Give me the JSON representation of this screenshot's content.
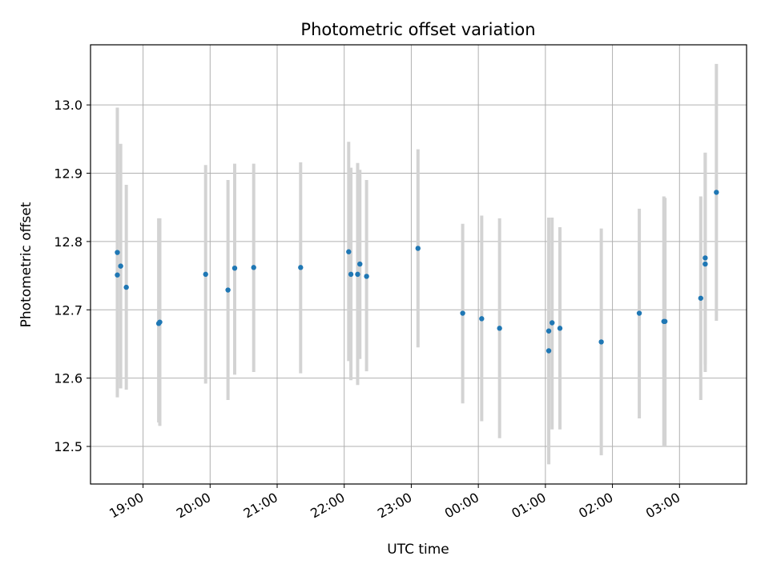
{
  "chart_data": {
    "type": "scatter",
    "title": "Photometric offset variation",
    "xlabel": "UTC time",
    "ylabel": "Photometric offset",
    "x_ticks": [
      "19:00",
      "20:00",
      "21:00",
      "22:00",
      "23:00",
      "00:00",
      "01:00",
      "02:00",
      "03:00"
    ],
    "y_ticks": [
      "12.5",
      "12.6",
      "12.7",
      "12.8",
      "12.9",
      "13.0"
    ],
    "xlim": [
      "18:13",
      "04:00"
    ],
    "ylim": [
      12.445,
      13.088
    ],
    "grid": true,
    "point_color": "#1f77b4",
    "errorbar_color": "#d3d3d3",
    "series": [
      {
        "points": [
          {
            "t": "18:37",
            "y": 12.784,
            "lo": 12.572,
            "hi": 12.996
          },
          {
            "t": "18:37",
            "y": 12.751,
            "lo": 12.572,
            "hi": 12.996
          },
          {
            "t": "18:40",
            "y": 12.764,
            "lo": 12.585,
            "hi": 12.943
          },
          {
            "t": "18:45",
            "y": 12.733,
            "lo": 12.583,
            "hi": 12.883
          },
          {
            "t": "19:14",
            "y": 12.68,
            "lo": 12.535,
            "hi": 12.834
          },
          {
            "t": "19:15",
            "y": 12.682,
            "lo": 12.53,
            "hi": 12.834
          },
          {
            "t": "19:56",
            "y": 12.752,
            "lo": 12.592,
            "hi": 12.912
          },
          {
            "t": "20:16",
            "y": 12.729,
            "lo": 12.568,
            "hi": 12.89
          },
          {
            "t": "20:22",
            "y": 12.761,
            "lo": 12.605,
            "hi": 12.914
          },
          {
            "t": "20:39",
            "y": 12.762,
            "lo": 12.609,
            "hi": 12.914
          },
          {
            "t": "21:21",
            "y": 12.762,
            "lo": 12.607,
            "hi": 12.916
          },
          {
            "t": "22:04",
            "y": 12.785,
            "lo": 12.625,
            "hi": 12.946
          },
          {
            "t": "22:06",
            "y": 12.752,
            "lo": 12.597,
            "hi": 12.908
          },
          {
            "t": "22:12",
            "y": 12.752,
            "lo": 12.59,
            "hi": 12.915
          },
          {
            "t": "22:14",
            "y": 12.767,
            "lo": 12.628,
            "hi": 12.905
          },
          {
            "t": "22:20",
            "y": 12.749,
            "lo": 12.61,
            "hi": 12.89
          },
          {
            "t": "23:06",
            "y": 12.79,
            "lo": 12.645,
            "hi": 12.935
          },
          {
            "t": "23:46",
            "y": 12.695,
            "lo": 12.563,
            "hi": 12.826
          },
          {
            "t": "00:03",
            "y": 12.687,
            "lo": 12.537,
            "hi": 12.838
          },
          {
            "t": "00:19",
            "y": 12.673,
            "lo": 12.512,
            "hi": 12.834
          },
          {
            "t": "01:03",
            "y": 12.64,
            "lo": 12.474,
            "hi": 12.835
          },
          {
            "t": "01:03",
            "y": 12.669,
            "lo": 12.474,
            "hi": 12.835
          },
          {
            "t": "01:06",
            "y": 12.681,
            "lo": 12.525,
            "hi": 12.835
          },
          {
            "t": "01:13",
            "y": 12.673,
            "lo": 12.525,
            "hi": 12.821
          },
          {
            "t": "01:50",
            "y": 12.653,
            "lo": 12.487,
            "hi": 12.819
          },
          {
            "t": "02:24",
            "y": 12.695,
            "lo": 12.541,
            "hi": 12.848
          },
          {
            "t": "02:46",
            "y": 12.683,
            "lo": 12.5,
            "hi": 12.866
          },
          {
            "t": "02:47",
            "y": 12.683,
            "lo": 12.5,
            "hi": 12.864
          },
          {
            "t": "03:19",
            "y": 12.717,
            "lo": 12.568,
            "hi": 12.866
          },
          {
            "t": "03:23",
            "y": 12.767,
            "lo": 12.609,
            "hi": 12.93
          },
          {
            "t": "03:23",
            "y": 12.776,
            "lo": 12.62,
            "hi": 12.93
          },
          {
            "t": "03:33",
            "y": 12.872,
            "lo": 12.684,
            "hi": 13.06
          }
        ]
      }
    ]
  }
}
